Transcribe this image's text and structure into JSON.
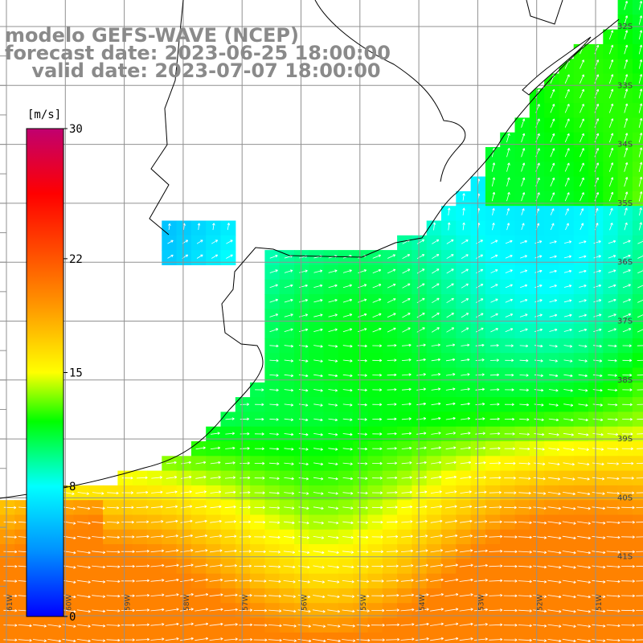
{
  "title": {
    "model": "modelo GEFS-WAVE (NCEP)",
    "forecast": "forecast date: 2023-06-25 18:00:00",
    "valid": "    valid date: 2023-07-07 18:00:00"
  },
  "colorbar": {
    "unit": "[m/s]",
    "ticks": [
      "30",
      "22",
      "15",
      "8",
      "0"
    ],
    "tick_values": [
      30,
      22,
      15,
      8,
      0
    ],
    "min": 0,
    "max": 30,
    "stops": [
      {
        "v": 0,
        "c": "#0000ff"
      },
      {
        "v": 4,
        "c": "#0090ff"
      },
      {
        "v": 8,
        "c": "#00ffff"
      },
      {
        "v": 12,
        "c": "#00ff00"
      },
      {
        "v": 15,
        "c": "#ffff00"
      },
      {
        "v": 19,
        "c": "#ff9900"
      },
      {
        "v": 22,
        "c": "#ff5500"
      },
      {
        "v": 26,
        "c": "#ff0000"
      },
      {
        "v": 30,
        "c": "#c00070"
      }
    ]
  },
  "map": {
    "lon_labels": [
      "61W",
      "60W",
      "59W",
      "58W",
      "57W",
      "56W",
      "55W",
      "54W",
      "53W",
      "52W",
      "51W"
    ],
    "lat_labels": [
      "32S",
      "33S",
      "34S",
      "35S",
      "36S",
      "37S",
      "38S",
      "39S",
      "40S",
      "41S"
    ],
    "grid_color": "#909090",
    "coast_color": "#000000",
    "arrow_color": "#ffffff"
  }
}
